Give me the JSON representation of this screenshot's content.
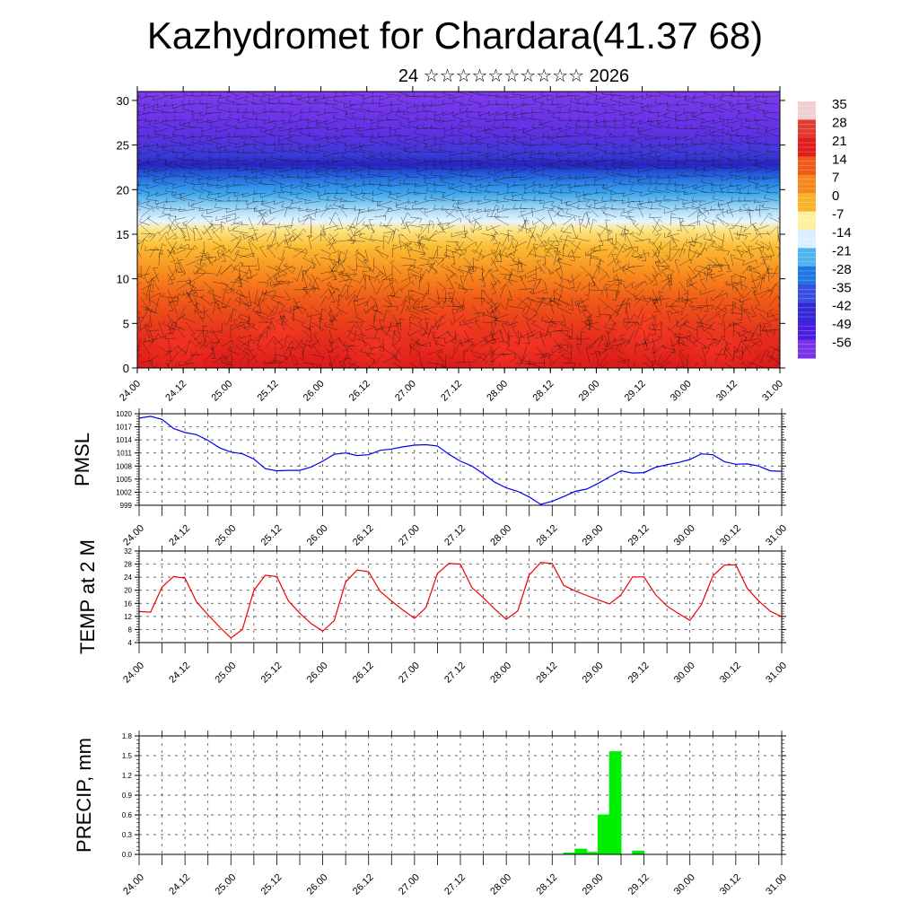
{
  "title": "Kazhydromet for Chardara(41.37 68)",
  "subtitle": "24 ☆☆☆☆☆☆☆☆☆☆ 2026",
  "time_ticks": [
    "24.00",
    "24.12",
    "25.00",
    "25.12",
    "26.00",
    "26.12",
    "27.00",
    "27.12",
    "28.00",
    "28.12",
    "29.00",
    "29.12",
    "30.00",
    "30.12",
    "31.00"
  ],
  "chart_data": [
    {
      "type": "heatmap",
      "name": "cross-section",
      "xlabel": "",
      "ylabel": "",
      "ylim": [
        0,
        31
      ],
      "y_ticks": [
        0,
        5,
        10,
        15,
        20,
        25,
        30
      ],
      "x_ticks": [
        "24.00",
        "24.12",
        "25.00",
        "25.12",
        "26.00",
        "26.12",
        "27.00",
        "27.12",
        "28.00",
        "28.12",
        "29.00",
        "29.12",
        "30.00",
        "30.12",
        "31.00"
      ],
      "colorbar_labels": [
        "35",
        "28",
        "21",
        "14",
        "7",
        "0",
        "-7",
        "-14",
        "-21",
        "-28",
        "-35",
        "-42",
        "-49",
        "-56"
      ],
      "colorbar_colors": [
        "#f2d0d2",
        "#e23a30",
        "#e01c1c",
        "#ef5a1c",
        "#f7861e",
        "#f9b22c",
        "#fdf0a0",
        "#dceeff",
        "#4fb4ee",
        "#1e78e0",
        "#3a4fe0",
        "#3428d6",
        "#4a1ee0",
        "#7a32e8"
      ]
    },
    {
      "type": "line",
      "name": "pmsl",
      "ylabel": "PMSL",
      "ylim": [
        999,
        1020
      ],
      "y_ticks": [
        999,
        1002,
        1005,
        1008,
        1011,
        1014,
        1017,
        1020
      ],
      "x_ticks": [
        "24.00",
        "24.12",
        "25.00",
        "25.12",
        "26.00",
        "26.12",
        "27.00",
        "27.12",
        "28.00",
        "28.12",
        "29.00",
        "29.12",
        "30.00",
        "30.12",
        "31.00"
      ],
      "x_range": [
        0,
        7
      ],
      "x": [
        0,
        0.125,
        0.25,
        0.375,
        0.5,
        0.625,
        0.75,
        0.875,
        1.0,
        1.125,
        1.25,
        1.375,
        1.5,
        1.625,
        1.75,
        1.875,
        2.0,
        2.125,
        2.25,
        2.375,
        2.5,
        2.625,
        2.75,
        2.875,
        3.0,
        3.125,
        3.25,
        3.375,
        3.5,
        3.625,
        3.75,
        3.875,
        4.0,
        4.125,
        4.25,
        4.375,
        4.5,
        4.625,
        4.75,
        4.875,
        5.0,
        5.125,
        5.25,
        5.375,
        5.5,
        5.625,
        5.75,
        5.875,
        6.0,
        6.125,
        6.25,
        6.375,
        6.5,
        6.625,
        6.75,
        6.875,
        7.0
      ],
      "series": [
        {
          "color": "#0000ee",
          "values": [
            1019.0,
            1019.4,
            1018.7,
            1016.6,
            1015.7,
            1015.2,
            1013.9,
            1012.2,
            1011.2,
            1010.8,
            1009.6,
            1007.4,
            1006.9,
            1007.0,
            1007.0,
            1007.8,
            1009.1,
            1010.7,
            1011.0,
            1010.4,
            1010.6,
            1011.6,
            1011.9,
            1012.4,
            1012.8,
            1012.9,
            1012.6,
            1010.7,
            1009.1,
            1008.0,
            1006.2,
            1004.3,
            1003.0,
            1002.2,
            1000.9,
            999.2,
            999.9,
            1001.0,
            1002.2,
            1002.7,
            1004.0,
            1005.5,
            1006.9,
            1006.4,
            1006.5,
            1007.7,
            1008.3,
            1008.8,
            1009.5,
            1010.8,
            1010.6,
            1009.0,
            1008.4,
            1008.5,
            1008.0,
            1006.9,
            1006.8
          ]
        }
      ]
    },
    {
      "type": "line",
      "name": "temp",
      "ylabel": "TEMP at 2 M",
      "ylim": [
        4,
        32
      ],
      "y_ticks": [
        4,
        8,
        12,
        16,
        20,
        24,
        28,
        32
      ],
      "x_ticks": [
        "24.00",
        "24.12",
        "25.00",
        "25.12",
        "26.00",
        "26.12",
        "27.00",
        "27.12",
        "28.00",
        "28.12",
        "29.00",
        "29.12",
        "30.00",
        "30.12",
        "31.00"
      ],
      "x_range": [
        0,
        7
      ],
      "x": [
        0,
        0.125,
        0.25,
        0.375,
        0.5,
        0.625,
        0.75,
        0.875,
        1.0,
        1.125,
        1.25,
        1.375,
        1.5,
        1.625,
        1.75,
        1.875,
        2.0,
        2.125,
        2.25,
        2.375,
        2.5,
        2.625,
        2.75,
        2.875,
        3.0,
        3.125,
        3.25,
        3.375,
        3.5,
        3.625,
        3.75,
        3.875,
        4.0,
        4.125,
        4.25,
        4.375,
        4.5,
        4.625,
        4.75,
        4.875,
        5.0,
        5.125,
        5.25,
        5.375,
        5.5,
        5.625,
        5.75,
        5.875,
        6.0,
        6.125,
        6.25,
        6.375,
        6.5,
        6.625,
        6.75,
        6.875,
        7.0
      ],
      "series": [
        {
          "color": "#ee0000",
          "values": [
            13.5,
            13.3,
            21.0,
            24.2,
            23.7,
            16.5,
            12.5,
            8.8,
            5.4,
            8.0,
            20.0,
            24.6,
            24.2,
            16.8,
            13.0,
            9.8,
            7.5,
            10.7,
            22.5,
            26.2,
            25.7,
            19.7,
            16.7,
            13.9,
            11.4,
            14.7,
            25.1,
            28.2,
            28.0,
            20.8,
            17.7,
            14.2,
            11.1,
            13.7,
            24.7,
            28.5,
            28.2,
            21.5,
            19.8,
            18.4,
            17.1,
            15.8,
            18.6,
            24.1,
            24.1,
            18.7,
            15.2,
            12.9,
            10.8,
            15.6,
            24.4,
            27.7,
            27.8,
            20.6,
            16.7,
            13.6,
            11.9
          ]
        }
      ]
    },
    {
      "type": "bar",
      "name": "precip",
      "ylabel": "PRECIP, mm",
      "ylim": [
        0,
        1.8
      ],
      "y_ticks": [
        "0.0",
        "0.3",
        "0.6",
        "0.9",
        "1.2",
        "1.5",
        "1.8"
      ],
      "x_ticks": [
        "24.00",
        "24.12",
        "25.00",
        "25.12",
        "26.00",
        "26.12",
        "27.00",
        "27.12",
        "28.00",
        "28.12",
        "29.00",
        "29.12",
        "30.00",
        "30.12",
        "31.00"
      ],
      "x_range": [
        0,
        7
      ],
      "bar_width": 0.125,
      "color": "#00ee00",
      "x": [
        4.625,
        4.75,
        4.875,
        5.0,
        5.125,
        5.375
      ],
      "values": [
        0.02,
        0.08,
        0.03,
        0.6,
        1.56,
        0.05
      ]
    }
  ]
}
